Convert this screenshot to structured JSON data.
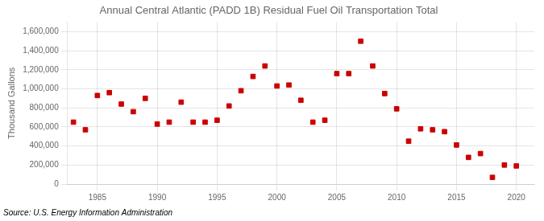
{
  "chart_data": {
    "type": "scatter",
    "title": "Annual Central Atlantic (PADD 1B) Residual Fuel Oil Transportation Total",
    "ylabel": "Thousand Gallons",
    "annotations": [
      "Source: U.S. Energy Information Administration"
    ],
    "x": [
      1983,
      1984,
      1985,
      1986,
      1987,
      1988,
      1989,
      1990,
      1991,
      1992,
      1993,
      1994,
      1995,
      1996,
      1997,
      1998,
      1999,
      2000,
      2001,
      2002,
      2003,
      2004,
      2005,
      2006,
      2007,
      2008,
      2009,
      2010,
      2011,
      2012,
      2013,
      2014,
      2015,
      2016,
      2017,
      2018,
      2019,
      2020
    ],
    "values": [
      650000,
      570000,
      930000,
      960000,
      840000,
      760000,
      900000,
      630000,
      650000,
      860000,
      650000,
      650000,
      670000,
      820000,
      980000,
      1130000,
      1240000,
      1030000,
      1040000,
      880000,
      650000,
      670000,
      1160000,
      1160000,
      1500000,
      1240000,
      950000,
      790000,
      450000,
      580000,
      570000,
      550000,
      410000,
      280000,
      320000,
      70000,
      200000,
      190000
    ],
    "color": "#cc0000",
    "marker": "square",
    "xlim": [
      1982.5,
      2021.5
    ],
    "xticks": [
      1985,
      1990,
      1995,
      2000,
      2005,
      2010,
      2015,
      2020
    ],
    "ylim": [
      0,
      1700000
    ],
    "yticks": [
      0,
      {
        "value": 200000,
        "label": "200,000"
      },
      {
        "value": 400000,
        "label": "400,000"
      },
      {
        "value": 600000,
        "label": "600,000"
      },
      {
        "value": 800000,
        "label": "800,000"
      },
      {
        "value": 1000000,
        "label": "1,000,000"
      },
      {
        "value": 1200000,
        "label": "1,200,000"
      },
      {
        "value": 1400000,
        "label": "1,400,000"
      },
      {
        "value": 1600000,
        "label": "1,600,000"
      }
    ],
    "grid": true
  }
}
